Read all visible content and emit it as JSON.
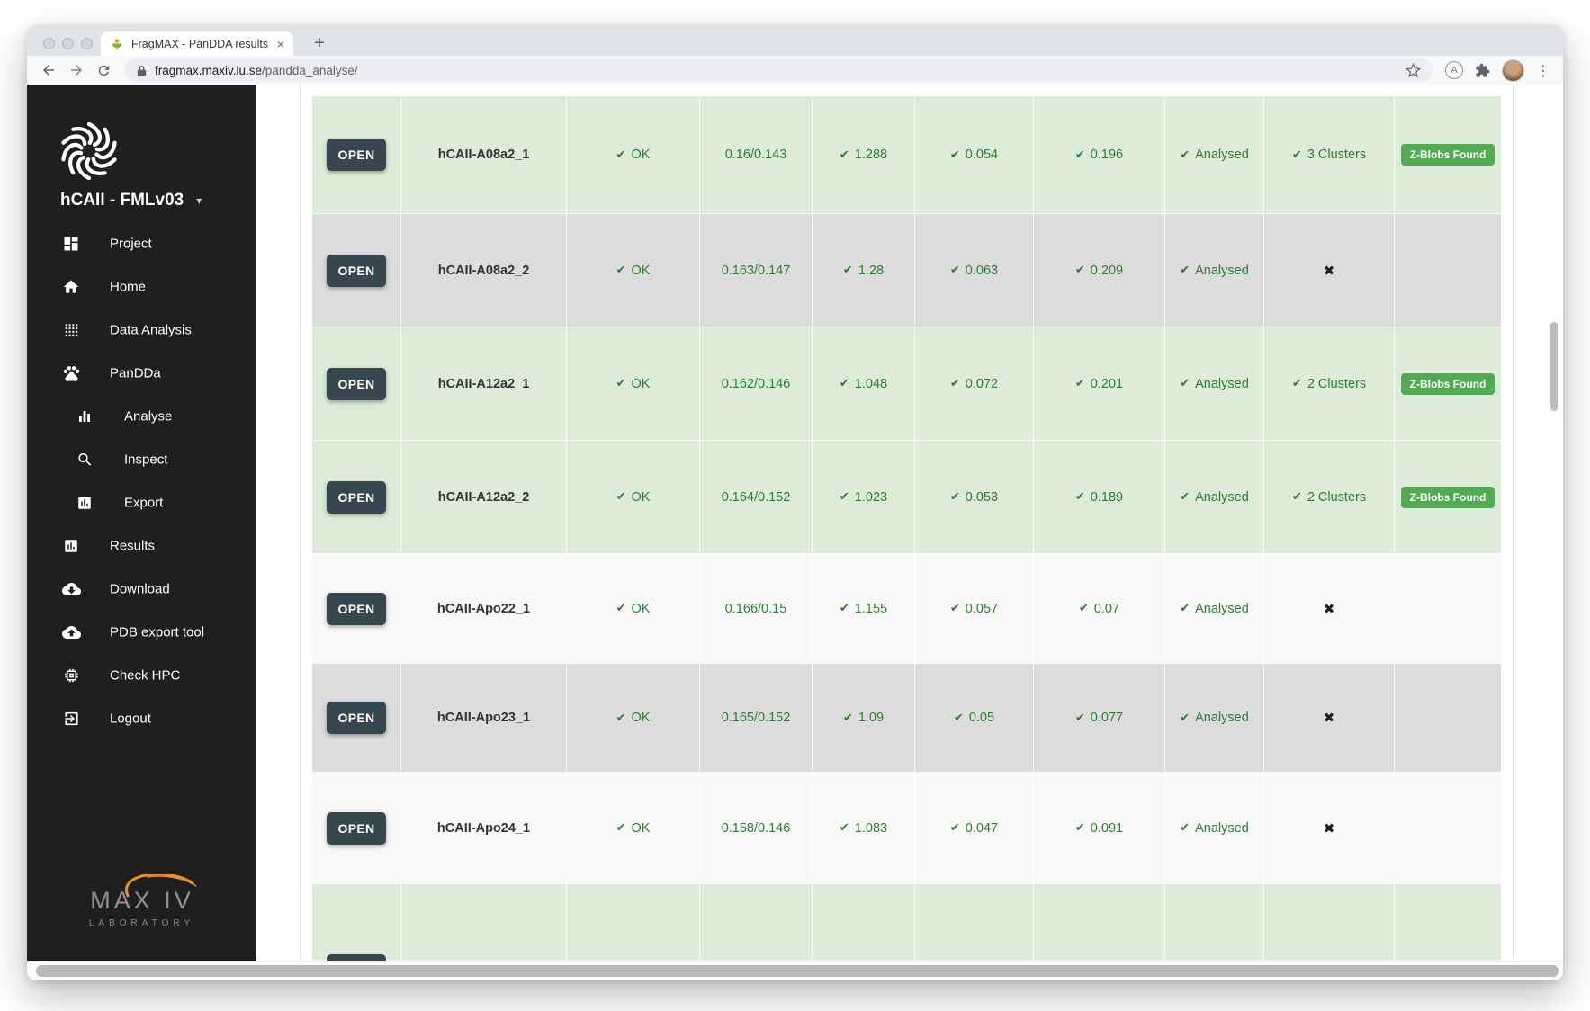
{
  "colors": {
    "row_green": "#dcecd8",
    "row_gray": "#dcdcdc",
    "row_white": "#f8f8f8",
    "text_green": "#2e7d32",
    "badge_green": "#52ab53",
    "open_button": "#37474f"
  },
  "browser": {
    "tab_title": "FragMAX - PanDDA results",
    "close_icon": "×",
    "new_tab_icon": "+",
    "menu_icon": "⋮",
    "url_host": "fragmax.maxiv.lu.se",
    "url_path": "/pandda_analyse/",
    "extension_letter": "A"
  },
  "sidebar": {
    "project_title": "hCAII - FMLv03",
    "caret_icon": "▾",
    "items": [
      {
        "label": "Project",
        "icon": "dashboard-icon",
        "indent": false
      },
      {
        "label": "Home",
        "icon": "home-icon",
        "indent": false
      },
      {
        "label": "Data Analysis",
        "icon": "grid-dots-icon",
        "indent": false
      },
      {
        "label": "PanDDa",
        "icon": "paw-icon",
        "indent": false
      },
      {
        "label": "Analyse",
        "icon": "bar-chart-icon",
        "indent": true
      },
      {
        "label": "Inspect",
        "icon": "search-icon",
        "indent": true
      },
      {
        "label": "Export",
        "icon": "report-icon",
        "indent": true
      },
      {
        "label": "Results",
        "icon": "report-icon",
        "indent": false
      },
      {
        "label": "Download",
        "icon": "cloud-download-icon",
        "indent": false
      },
      {
        "label": "PDB export tool",
        "icon": "cloud-upload-icon",
        "indent": false
      },
      {
        "label": "Check HPC",
        "icon": "chip-icon",
        "indent": false
      },
      {
        "label": "Logout",
        "icon": "logout-icon",
        "indent": false
      }
    ],
    "footer_logo_line1": "MAX IV",
    "footer_logo_line2": "LABORATORY"
  },
  "table": {
    "open_label": "OPEN",
    "badge_label": "Z-Blobs Found",
    "check_icon": "✔",
    "cross_icon": "✖",
    "rows": [
      {
        "name": "hCAII-A08a2_1",
        "status": "OK",
        "resolution": "0.16/0.143",
        "metric1": "1.288",
        "metric2": "0.054",
        "metric3": "0.196",
        "analysis": "Analysed",
        "clusters": "3 Clusters",
        "zblobs": true,
        "tone": "green"
      },
      {
        "name": "hCAII-A08a2_2",
        "status": "OK",
        "resolution": "0.163/0.147",
        "metric1": "1.28",
        "metric2": "0.063",
        "metric3": "0.209",
        "analysis": "Analysed",
        "clusters": null,
        "zblobs": false,
        "tone": "gray"
      },
      {
        "name": "hCAII-A12a2_1",
        "status": "OK",
        "resolution": "0.162/0.146",
        "metric1": "1.048",
        "metric2": "0.072",
        "metric3": "0.201",
        "analysis": "Analysed",
        "clusters": "2 Clusters",
        "zblobs": true,
        "tone": "green"
      },
      {
        "name": "hCAII-A12a2_2",
        "status": "OK",
        "resolution": "0.164/0.152",
        "metric1": "1.023",
        "metric2": "0.053",
        "metric3": "0.189",
        "analysis": "Analysed",
        "clusters": "2 Clusters",
        "zblobs": true,
        "tone": "green"
      },
      {
        "name": "hCAII-Apo22_1",
        "status": "OK",
        "resolution": "0.166/0.15",
        "metric1": "1.155",
        "metric2": "0.057",
        "metric3": "0.07",
        "analysis": "Analysed",
        "clusters": null,
        "zblobs": false,
        "tone": "white"
      },
      {
        "name": "hCAII-Apo23_1",
        "status": "OK",
        "resolution": "0.165/0.152",
        "metric1": "1.09",
        "metric2": "0.05",
        "metric3": "0.077",
        "analysis": "Analysed",
        "clusters": null,
        "zblobs": false,
        "tone": "gray"
      },
      {
        "name": "hCAII-Apo24_1",
        "status": "OK",
        "resolution": "0.158/0.146",
        "metric1": "1.083",
        "metric2": "0.047",
        "metric3": "0.091",
        "analysis": "Analysed",
        "clusters": null,
        "zblobs": false,
        "tone": "white"
      },
      {
        "name": "",
        "status": "",
        "resolution": "",
        "metric1": "",
        "metric2": "",
        "metric3": "",
        "analysis": "",
        "clusters": null,
        "zblobs": false,
        "tone": "green"
      }
    ]
  }
}
